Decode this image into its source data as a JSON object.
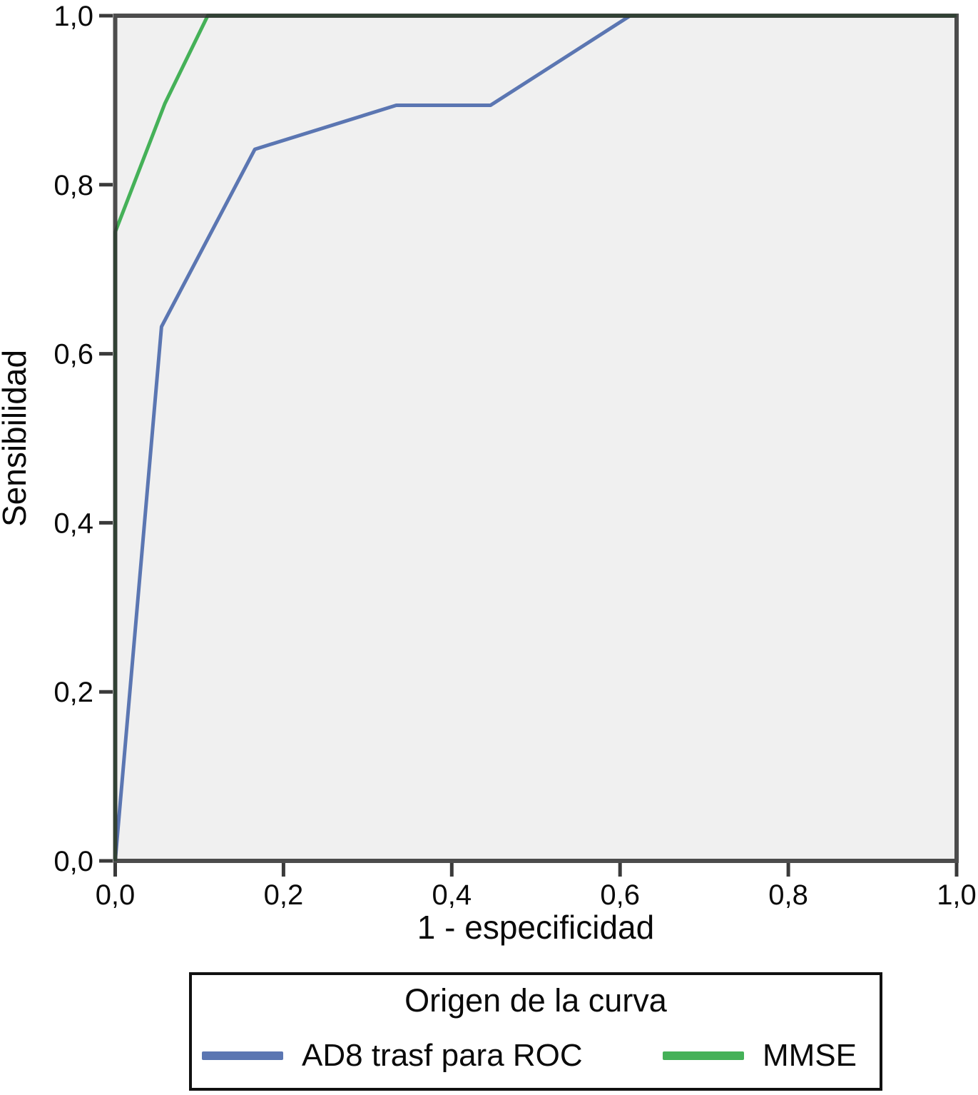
{
  "chart_data": {
    "type": "line",
    "title": "",
    "xlabel": "1 - especificidad",
    "ylabel": "Sensibilidad",
    "xlim": [
      0,
      1
    ],
    "ylim": [
      0,
      1
    ],
    "grid": false,
    "plot_bg": "#f0f0f0",
    "frame_color": "#2e2e2e",
    "tick_color": "#3a3a3a",
    "text_color": "#0a0a0a",
    "x_ticks": {
      "values": [
        0,
        0.2,
        0.4,
        0.6,
        0.8,
        1.0
      ],
      "labels": [
        "0,0",
        "0,2",
        "0,4",
        "0,6",
        "0,8",
        "1,0"
      ]
    },
    "y_ticks": {
      "values": [
        0,
        0.2,
        0.4,
        0.6,
        0.8,
        1.0
      ],
      "labels": [
        "0,0",
        "0,2",
        "0,4",
        "0,6",
        "0,8",
        "1,0"
      ]
    },
    "legend": {
      "title": "Origen de la curva",
      "position": "bottom",
      "entries": [
        {
          "label": "AD8 trasf para ROC",
          "color": "#5b76b2"
        },
        {
          "label": "MMSE",
          "color": "#45b158"
        }
      ]
    },
    "series": [
      {
        "name": "AD8 trasf para ROC",
        "color": "#5b76b2",
        "points": [
          [
            0,
            0
          ],
          [
            0.055,
            0.632
          ],
          [
            0.166,
            0.842
          ],
          [
            0.334,
            0.894
          ],
          [
            0.446,
            0.894
          ],
          [
            0.612,
            1.0
          ],
          [
            1.0,
            1.0
          ]
        ]
      },
      {
        "name": "MMSE",
        "color": "#45b158",
        "points": [
          [
            0,
            0
          ],
          [
            0,
            0.744
          ],
          [
            0.059,
            0.896
          ],
          [
            0.11,
            1.0
          ],
          [
            1.0,
            1.0
          ]
        ]
      }
    ]
  }
}
